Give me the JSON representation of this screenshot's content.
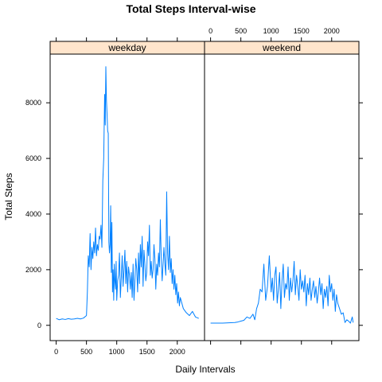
{
  "chart_data": {
    "type": "line",
    "title": "Total Steps Interval-wise",
    "xlabel": "Daily Intervals",
    "ylabel": "Total Steps",
    "xlim": [
      -100,
      2450
    ],
    "ylim": [
      -550,
      9750
    ],
    "x_ticks": [
      0,
      500,
      1000,
      1500,
      2000
    ],
    "y_ticks": [
      0,
      2000,
      4000,
      6000,
      8000
    ],
    "grid": false,
    "layout": "two panels side by side with strip headers",
    "series_color": "#0080ff",
    "strip_color": "#ffe5cc",
    "panels": [
      {
        "name": "weekday",
        "x": [
          0,
          50,
          100,
          150,
          200,
          250,
          300,
          350,
          400,
          450,
          500,
          515,
          530,
          545,
          560,
          575,
          590,
          605,
          620,
          635,
          650,
          665,
          680,
          695,
          710,
          725,
          740,
          755,
          770,
          785,
          800,
          810,
          820,
          830,
          840,
          850,
          860,
          870,
          880,
          890,
          900,
          910,
          920,
          930,
          940,
          950,
          960,
          970,
          980,
          990,
          1000,
          1015,
          1030,
          1045,
          1060,
          1075,
          1090,
          1105,
          1120,
          1135,
          1150,
          1165,
          1180,
          1195,
          1210,
          1225,
          1240,
          1255,
          1270,
          1285,
          1300,
          1315,
          1330,
          1345,
          1360,
          1375,
          1390,
          1405,
          1420,
          1435,
          1450,
          1465,
          1480,
          1495,
          1510,
          1525,
          1540,
          1555,
          1570,
          1585,
          1600,
          1615,
          1630,
          1645,
          1660,
          1675,
          1690,
          1705,
          1720,
          1735,
          1750,
          1765,
          1780,
          1795,
          1810,
          1825,
          1840,
          1855,
          1870,
          1885,
          1900,
          1915,
          1930,
          1945,
          1960,
          1975,
          1990,
          2005,
          2020,
          2035,
          2050,
          2100,
          2150,
          2200,
          2250,
          2300,
          2355
        ],
        "y": [
          250,
          200,
          230,
          210,
          240,
          220,
          230,
          250,
          230,
          260,
          350,
          1200,
          2500,
          2100,
          3300,
          2000,
          2800,
          2400,
          3000,
          2600,
          3500,
          2500,
          2900,
          2700,
          3200,
          3100,
          3600,
          2800,
          5200,
          6000,
          8300,
          7200,
          9300,
          8100,
          7600,
          7000,
          6900,
          3000,
          2600,
          2900,
          4300,
          1900,
          3700,
          1200,
          2000,
          900,
          2200,
          1600,
          1300,
          2300,
          900,
          1600,
          1800,
          2600,
          1000,
          1700,
          2500,
          1400,
          2000,
          2700,
          1500,
          2300,
          1200,
          2100,
          1800,
          1300,
          1900,
          1000,
          2200,
          900,
          1600,
          2400,
          2000,
          1200,
          2600,
          1500,
          2900,
          2100,
          3200,
          1400,
          2700,
          2200,
          1600,
          1900,
          3000,
          2500,
          3600,
          1800,
          2300,
          1700,
          2000,
          2900,
          2400,
          1300,
          2200,
          1800,
          2600,
          2100,
          3800,
          2400,
          1600,
          2200,
          2800,
          2200,
          1800,
          4800,
          2600,
          2000,
          3200,
          1900,
          2400,
          1500,
          2000,
          1300,
          1800,
          1100,
          1500,
          800,
          1200,
          700,
          1000,
          600,
          450,
          350,
          500,
          300,
          250
        ]
      },
      {
        "name": "weekend",
        "x": [
          0,
          100,
          200,
          300,
          400,
          450,
          500,
          550,
          600,
          650,
          700,
          730,
          760,
          790,
          820,
          850,
          880,
          910,
          940,
          970,
          1000,
          1020,
          1040,
          1060,
          1080,
          1100,
          1120,
          1140,
          1160,
          1180,
          1200,
          1220,
          1240,
          1260,
          1280,
          1300,
          1320,
          1340,
          1360,
          1380,
          1400,
          1420,
          1440,
          1460,
          1480,
          1500,
          1520,
          1540,
          1560,
          1580,
          1600,
          1620,
          1640,
          1660,
          1680,
          1700,
          1720,
          1740,
          1760,
          1780,
          1800,
          1820,
          1840,
          1860,
          1880,
          1900,
          1920,
          1940,
          1960,
          1980,
          2000,
          2020,
          2040,
          2060,
          2080,
          2100,
          2130,
          2160,
          2190,
          2220,
          2250,
          2280,
          2310,
          2340,
          2355
        ],
        "y": [
          80,
          80,
          80,
          90,
          100,
          120,
          150,
          180,
          300,
          250,
          400,
          200,
          600,
          800,
          1300,
          1200,
          2200,
          900,
          1400,
          2500,
          1200,
          1700,
          900,
          1800,
          2100,
          800,
          1300,
          1900,
          600,
          1600,
          2200,
          1000,
          1500,
          1300,
          2100,
          900,
          1700,
          1200,
          1600,
          2300,
          1100,
          1800,
          1400,
          900,
          2000,
          1300,
          1600,
          1200,
          1800,
          700,
          1500,
          1100,
          1700,
          900,
          1300,
          1600,
          1000,
          1400,
          800,
          1200,
          1700,
          1100,
          1500,
          600,
          1300,
          1000,
          1400,
          700,
          1800,
          1200,
          1500,
          900,
          1300,
          500,
          1100,
          800,
          600,
          400,
          450,
          100,
          200,
          150,
          80,
          300,
          100
        ]
      }
    ]
  }
}
